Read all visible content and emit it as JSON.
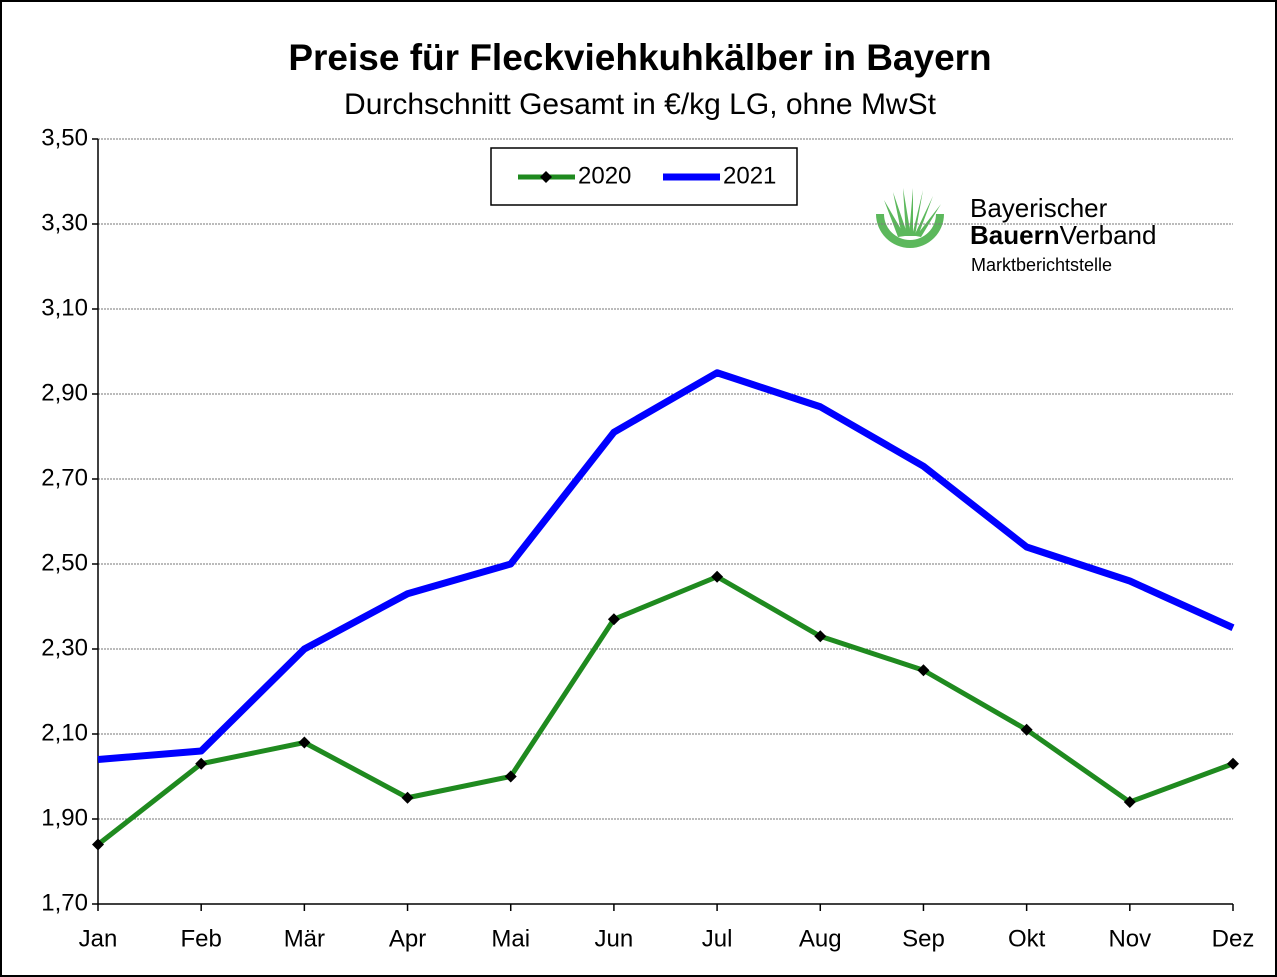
{
  "chart_data": {
    "type": "line",
    "title": "Preise für Fleckviehkuhkälber in Bayern",
    "subtitle": "Durchschnitt Gesamt in €/kg LG, ohne MwSt",
    "categories": [
      "Jan",
      "Feb",
      "Mär",
      "Apr",
      "Mai",
      "Jun",
      "Jul",
      "Aug",
      "Sep",
      "Okt",
      "Nov",
      "Dez"
    ],
    "series": [
      {
        "name": "2020",
        "color": "#1f8a1f",
        "values": [
          1.84,
          2.03,
          2.08,
          1.95,
          2.0,
          2.37,
          2.47,
          2.33,
          2.25,
          2.11,
          1.94,
          2.03
        ]
      },
      {
        "name": "2021",
        "color": "#0000ff",
        "values": [
          2.04,
          2.06,
          2.3,
          2.43,
          2.5,
          2.81,
          2.95,
          2.87,
          2.73,
          2.54,
          2.46,
          2.35
        ]
      }
    ],
    "ylim": [
      1.7,
      3.5
    ],
    "yticks": [
      {
        "value": 1.7,
        "label": "1,70"
      },
      {
        "value": 1.9,
        "label": "1,90"
      },
      {
        "value": 2.1,
        "label": "2,10"
      },
      {
        "value": 2.3,
        "label": "2,30"
      },
      {
        "value": 2.5,
        "label": "2,50"
      },
      {
        "value": 2.7,
        "label": "2,70"
      },
      {
        "value": 2.9,
        "label": "2,90"
      },
      {
        "value": 3.1,
        "label": "3,10"
      },
      {
        "value": 3.3,
        "label": "3,30"
      },
      {
        "value": 3.5,
        "label": "3,50"
      }
    ],
    "grid": true,
    "legend": "top"
  },
  "logo": {
    "lines": [
      "Bayerischer",
      "Bauern",
      "Verband",
      "Marktberichtstelle"
    ]
  }
}
